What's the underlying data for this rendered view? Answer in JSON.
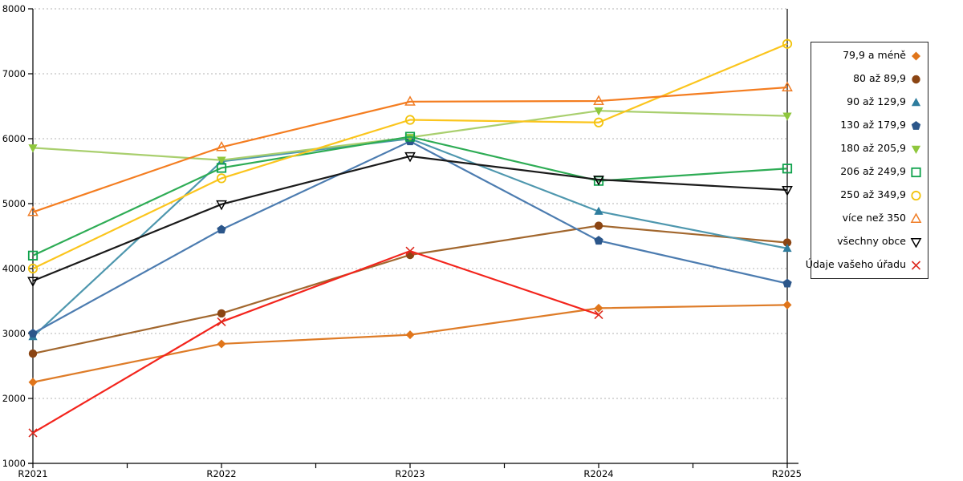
{
  "chart_data": {
    "type": "line",
    "title": "",
    "xlabel": "",
    "ylabel": "",
    "categories": [
      "R2021",
      "R2022",
      "R2023",
      "R2024",
      "R2025"
    ],
    "ylim": [
      1000,
      8000
    ],
    "yticks": [
      1000,
      2000,
      3000,
      4000,
      5000,
      6000,
      7000,
      8000
    ],
    "grid": "horizontal-dashed",
    "grid_color": "#b3b3b3",
    "axis_color": "#000000",
    "legend_position": "right",
    "series": [
      {
        "name": "79,9 a méně",
        "marker": "diamond-filled",
        "line_color": "#DE7C28",
        "marker_color": "#E0751A",
        "values": [
          2250,
          2840,
          2980,
          3390,
          3440
        ]
      },
      {
        "name": "80 až 89,9",
        "marker": "circle-filled",
        "line_color": "#A2672E",
        "marker_color": "#8B4513",
        "values": [
          2690,
          3310,
          4210,
          4660,
          4400
        ]
      },
      {
        "name": "90 až 129,9",
        "marker": "triangle-up-filled",
        "line_color": "#4E97AE",
        "marker_color": "#2E7D9E",
        "values": [
          2950,
          5650,
          6000,
          4880,
          4310
        ]
      },
      {
        "name": "130 až 179,9",
        "marker": "pentagon-filled",
        "line_color": "#4C7CB0",
        "marker_color": "#2B568A",
        "values": [
          3000,
          4600,
          5960,
          4430,
          3770
        ]
      },
      {
        "name": "180 až 205,9",
        "marker": "triangle-down-filled",
        "line_color": "#A9CF6E",
        "marker_color": "#8FC73D",
        "values": [
          5860,
          5670,
          6020,
          6430,
          6350
        ]
      },
      {
        "name": "206 až 249,9",
        "marker": "square-open",
        "line_color": "#2EAC55",
        "marker_color": "#0FA24C",
        "values": [
          4200,
          5550,
          6030,
          5350,
          5540
        ]
      },
      {
        "name": "250 až 349,9",
        "marker": "circle-open",
        "line_color": "#FBC51D",
        "marker_color": "#F2C40E",
        "values": [
          4000,
          5390,
          6290,
          6250,
          7460
        ]
      },
      {
        "name": "více než 350",
        "marker": "triangle-up-open",
        "line_color": "#F47D20",
        "marker_color": "#F07D26",
        "values": [
          4870,
          5870,
          6570,
          6580,
          6790
        ]
      },
      {
        "name": "všechny obce",
        "marker": "triangle-down-open",
        "line_color": "#1A1A1A",
        "marker_color": "#000000",
        "values": [
          3810,
          4990,
          5730,
          5370,
          5210
        ]
      },
      {
        "name": "Údaje vašeho úřadu",
        "marker": "x",
        "line_color": "#F3241C",
        "marker_color": "#DD2A1F",
        "values": [
          1470,
          3180,
          4270,
          3290,
          null
        ]
      }
    ]
  }
}
